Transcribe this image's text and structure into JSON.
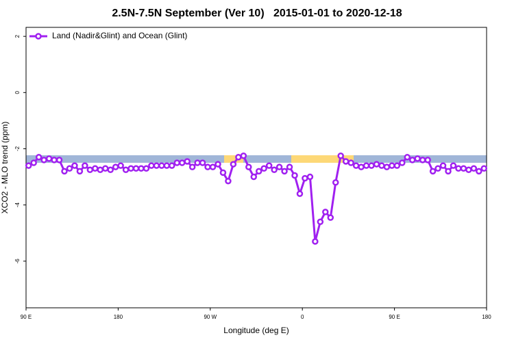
{
  "chart_data": {
    "type": "line",
    "title": "2.5N-7.5N September (Ver 10)   2015-01-01 to 2020-12-18",
    "x_label": "Longitude (deg E)",
    "y_label": "XCO2 - MLO trend (ppm)",
    "xlim": [
      90,
      540
    ],
    "xticks": [
      {
        "value": 90,
        "label": "90 E"
      },
      {
        "value": 180,
        "label": "180"
      },
      {
        "value": 270,
        "label": "90 W"
      },
      {
        "value": 360,
        "label": "0"
      },
      {
        "value": 450,
        "label": "90 E"
      },
      {
        "value": 540,
        "label": "180"
      }
    ],
    "ylim": [
      -7.66,
      2.32
    ],
    "yticks": [
      2,
      0,
      -2,
      -4,
      -6
    ],
    "legend": "top-left",
    "x": [
      92.5,
      97.5,
      102.5,
      107.5,
      112.5,
      117.5,
      122.5,
      127.5,
      132.5,
      137.5,
      142.5,
      147.5,
      152.5,
      157.5,
      162.5,
      167.5,
      172.5,
      177.5,
      182.5,
      187.5,
      192.5,
      197.5,
      202.5,
      207.5,
      212.5,
      217.5,
      222.5,
      227.5,
      232.5,
      237.5,
      242.5,
      247.5,
      252.5,
      257.5,
      262.5,
      267.5,
      272.5,
      277.5,
      282.5,
      287.5,
      292.5,
      297.5,
      302.5,
      307.5,
      312.5,
      317.5,
      322.5,
      327.5,
      332.5,
      337.5,
      342.5,
      347.5,
      352.5,
      357.5,
      362.5,
      367.5,
      372.5,
      377.5,
      382.5,
      387.5,
      392.5,
      397.5,
      402.5,
      407.5,
      412.5,
      417.5,
      422.5,
      427.5,
      432.5,
      437.5,
      442.5,
      447.5,
      452.5,
      457.5,
      462.5,
      467.5,
      472.5,
      477.5,
      482.5,
      487.5,
      492.5,
      497.5,
      502.5,
      507.5,
      512.5,
      517.5,
      522.5,
      527.5,
      532.5,
      537.5
    ],
    "series": [
      {
        "name": "Land (Nadir&Glint) and Ocean (Glint)",
        "color": "#a020f0",
        "values": [
          -2.6,
          -2.5,
          -2.3,
          -2.4,
          -2.35,
          -2.4,
          -2.4,
          -2.8,
          -2.7,
          -2.6,
          -2.8,
          -2.6,
          -2.75,
          -2.7,
          -2.75,
          -2.7,
          -2.75,
          -2.65,
          -2.6,
          -2.75,
          -2.7,
          -2.7,
          -2.7,
          -2.7,
          -2.6,
          -2.6,
          -2.6,
          -2.6,
          -2.6,
          -2.5,
          -2.5,
          -2.45,
          -2.65,
          -2.5,
          -2.5,
          -2.65,
          -2.65,
          -2.55,
          -2.85,
          -3.15,
          -2.55,
          -2.3,
          -2.25,
          -2.65,
          -3.0,
          -2.8,
          -2.7,
          -2.6,
          -2.75,
          -2.65,
          -2.8,
          -2.65,
          -2.95,
          -3.6,
          -3.05,
          -3.0,
          -5.3,
          -4.6,
          -4.25,
          -4.45,
          -3.2,
          -2.25,
          -2.45,
          -2.5,
          -2.6,
          -2.65,
          -2.6,
          -2.6,
          -2.55,
          -2.6,
          -2.65,
          -2.6,
          -2.6,
          -2.5,
          -2.3,
          -2.4,
          -2.35,
          -2.4,
          -2.4,
          -2.8,
          -2.7,
          -2.6,
          -2.8,
          -2.6,
          -2.7,
          -2.7,
          -2.75,
          -2.7,
          -2.8,
          -2.7
        ]
      }
    ]
  }
}
